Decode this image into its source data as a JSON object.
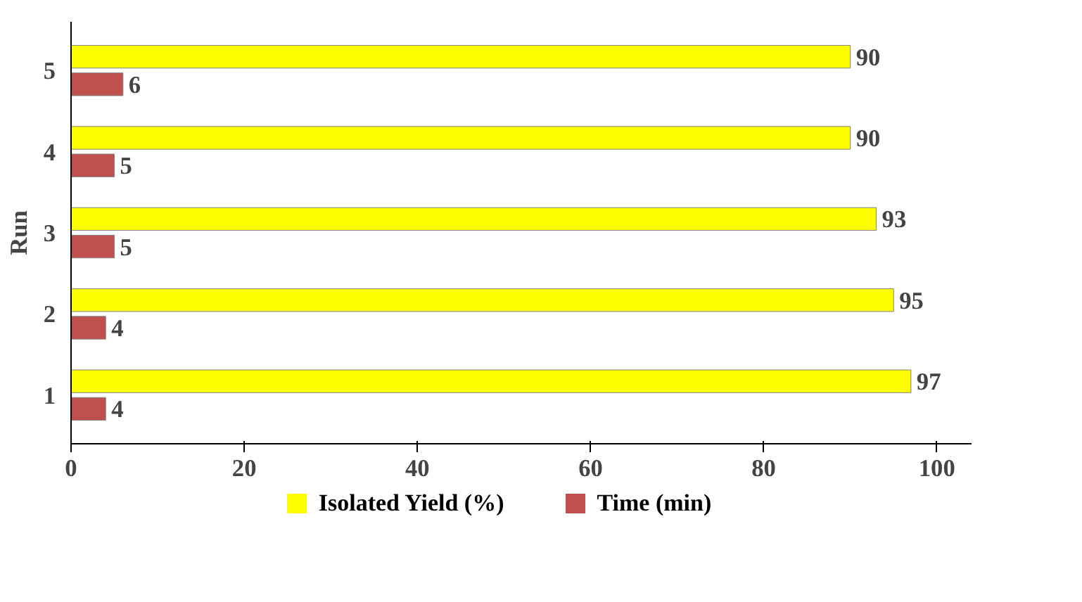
{
  "chart_data": {
    "type": "bar",
    "orientation": "horizontal",
    "ylabel": "Run",
    "categories": [
      "5",
      "4",
      "3",
      "2",
      "1"
    ],
    "series": [
      {
        "name": "Isolated Yield (%)",
        "color": "#ffff00",
        "values": [
          90,
          90,
          93,
          95,
          97
        ]
      },
      {
        "name": "Time (min)",
        "color": "#c0504d",
        "values": [
          6,
          5,
          5,
          4,
          4
        ]
      }
    ],
    "xlim": [
      0,
      104
    ],
    "xticks": [
      0,
      20,
      40,
      60,
      80,
      100
    ],
    "data_labels": true,
    "legend": "bottom",
    "grid": false
  }
}
